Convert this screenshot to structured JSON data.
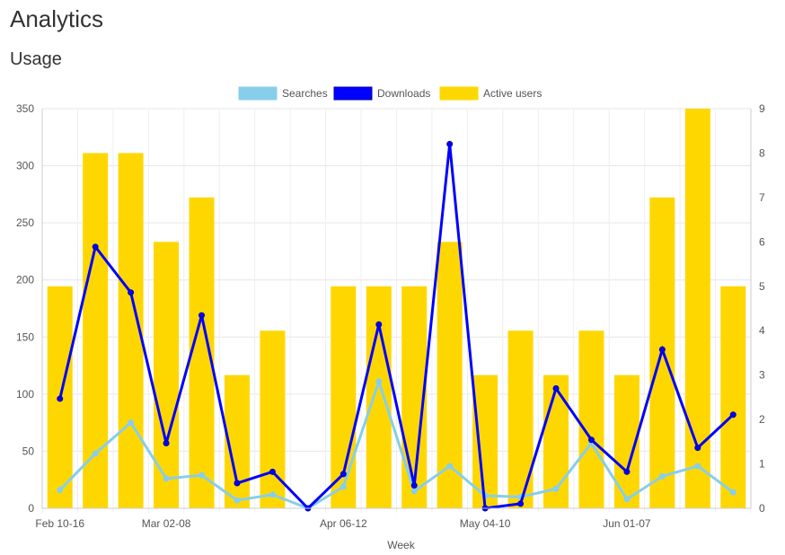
{
  "page": {
    "title": "Analytics"
  },
  "section": {
    "title": "Usage"
  },
  "colors": {
    "searches": "#87ceeb",
    "downloads": "#0000ff",
    "active_users": "#ffd700"
  },
  "chart_data": {
    "type": "bar",
    "xlabel": "Week",
    "x_ticks": [
      "Feb 10-16",
      "Mar 02-08",
      "Apr 06-12",
      "May 04-10",
      "Jun 01-07"
    ],
    "x_tick_indices": [
      0,
      3,
      8,
      12,
      16
    ],
    "y_left": {
      "ticks": [
        0,
        50,
        100,
        150,
        200,
        250,
        300,
        350
      ],
      "lim": [
        0,
        350
      ]
    },
    "y_right": {
      "ticks": [
        0,
        1,
        2,
        3,
        4,
        5,
        6,
        7,
        8,
        9
      ],
      "lim": [
        0,
        9
      ]
    },
    "legend": {
      "placement": "top-center"
    },
    "grid": true,
    "n_categories": 20,
    "series": [
      {
        "name": "Searches",
        "type": "line",
        "axis": "left",
        "values": [
          16,
          48,
          75,
          26,
          29,
          7,
          12,
          0,
          19,
          111,
          15,
          37,
          11,
          10,
          17,
          57,
          8,
          28,
          37,
          14
        ]
      },
      {
        "name": "Downloads",
        "type": "line",
        "axis": "left",
        "values": [
          96,
          229,
          189,
          57,
          169,
          22,
          32,
          0,
          30,
          161,
          20,
          319,
          0,
          4,
          105,
          60,
          32,
          139,
          53,
          82
        ]
      },
      {
        "name": "Active users",
        "type": "bar",
        "axis": "right",
        "values": [
          5,
          8,
          8,
          6,
          7,
          3,
          4,
          0,
          5,
          5,
          5,
          6,
          3,
          4,
          3,
          4,
          3,
          7,
          9,
          5
        ]
      }
    ]
  }
}
